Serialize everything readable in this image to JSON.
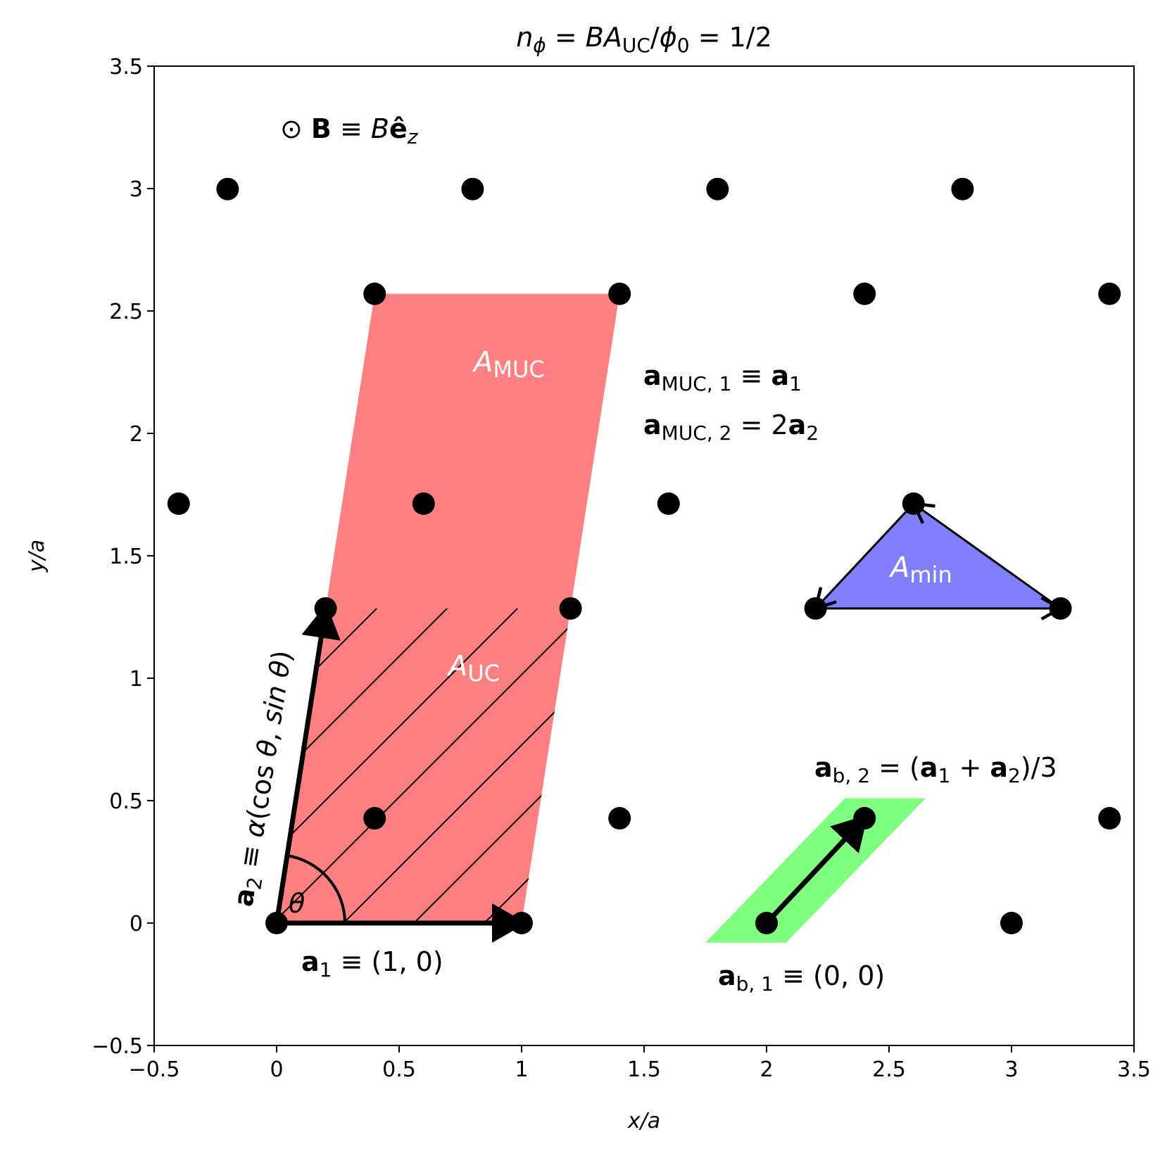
{
  "chart_data": {
    "type": "scatter",
    "title": "n_φ = BA_UC/φ_0 = 1/2",
    "xlabel": "x/a",
    "ylabel": "y/a",
    "xlim": [
      -0.5,
      3.5
    ],
    "ylim": [
      -0.5,
      3.5
    ],
    "grid": false,
    "xticks": [
      -0.5,
      0,
      0.5,
      1,
      1.5,
      2,
      2.5,
      3,
      3.5
    ],
    "xtick_labels": [
      "−0.5",
      "0",
      "0.5",
      "1",
      "1.5",
      "2",
      "2.5",
      "3",
      "3.5"
    ],
    "yticks": [
      -0.5,
      0,
      0.5,
      1,
      1.5,
      2,
      2.5,
      3,
      3.5
    ],
    "ytick_labels": [
      "−0.5",
      "0",
      "0.5",
      "1",
      "1.5",
      "2",
      "2.5",
      "3",
      "3.5"
    ],
    "points": [
      {
        "x": 0,
        "y": 0
      },
      {
        "x": 1,
        "y": 0
      },
      {
        "x": 2,
        "y": 0
      },
      {
        "x": 3,
        "y": 0
      },
      {
        "x": 0.4,
        "y": 0.428
      },
      {
        "x": 1.4,
        "y": 0.428
      },
      {
        "x": 2.4,
        "y": 0.428
      },
      {
        "x": 3.4,
        "y": 0.428
      },
      {
        "x": 0.2,
        "y": 1.285
      },
      {
        "x": 1.2,
        "y": 1.285
      },
      {
        "x": 2.2,
        "y": 1.285
      },
      {
        "x": 3.2,
        "y": 1.285
      },
      {
        "x": -0.4,
        "y": 1.713
      },
      {
        "x": 0.6,
        "y": 1.713
      },
      {
        "x": 1.6,
        "y": 1.713
      },
      {
        "x": 2.6,
        "y": 1.713
      },
      {
        "x": 0.4,
        "y": 2.57
      },
      {
        "x": 1.4,
        "y": 2.57
      },
      {
        "x": 2.4,
        "y": 2.57
      },
      {
        "x": 3.4,
        "y": 2.57
      },
      {
        "x": -0.2,
        "y": 2.998
      },
      {
        "x": 0.8,
        "y": 2.998
      },
      {
        "x": 1.8,
        "y": 2.998
      },
      {
        "x": 2.8,
        "y": 2.998
      }
    ],
    "regions": {
      "muc": {
        "color": "#ff8080",
        "vertices": [
          [
            0,
            0
          ],
          [
            1,
            0
          ],
          [
            1.4,
            2.57
          ],
          [
            0.4,
            2.57
          ]
        ]
      },
      "uc_hatch": {
        "vertices": [
          [
            0,
            0
          ],
          [
            1,
            0
          ],
          [
            1.2,
            1.285
          ],
          [
            0.2,
            1.285
          ]
        ]
      },
      "min": {
        "color": "#8080ff",
        "vertices": [
          [
            2.2,
            1.285
          ],
          [
            3.2,
            1.285
          ],
          [
            2.6,
            1.713
          ]
        ]
      },
      "basis": {
        "color": "#80ff80",
        "vertices": [
          [
            1.75,
            -0.08
          ],
          [
            2.08,
            -0.08
          ],
          [
            2.65,
            0.51
          ],
          [
            2.32,
            0.51
          ]
        ]
      }
    },
    "vectors": [
      {
        "from": [
          0,
          0
        ],
        "to": [
          1,
          0
        ],
        "style": "thick"
      },
      {
        "from": [
          0,
          0
        ],
        "to": [
          0.2,
          1.285
        ],
        "style": "thick"
      },
      {
        "from": [
          2,
          0
        ],
        "to": [
          2.4,
          0.428
        ],
        "style": "thick"
      },
      {
        "from": [
          2.2,
          1.285
        ],
        "to": [
          3.2,
          1.285
        ],
        "style": "thin"
      },
      {
        "from": [
          3.2,
          1.285
        ],
        "to": [
          2.6,
          1.713
        ],
        "style": "thin"
      },
      {
        "from": [
          2.6,
          1.713
        ],
        "to": [
          2.2,
          1.285
        ],
        "style": "thin"
      }
    ],
    "annotations": {
      "b_field": "⊙ B ≡ Bê_z",
      "a_muc1": "a_MUC,1 ≡ a_1",
      "a_muc2": "a_MUC,2 = 2a_2",
      "a1": "a_1 ≡ (1, 0)",
      "a2": "a_2 ≡ α(cos θ, sin θ)",
      "theta": "θ",
      "ab1": "a_b,1 ≡ (0, 0)",
      "ab2": "a_b,2 = (a_1 + a_2)/3",
      "A_MUC": "A_MUC",
      "A_UC": "A_UC",
      "A_min": "A_min"
    }
  }
}
